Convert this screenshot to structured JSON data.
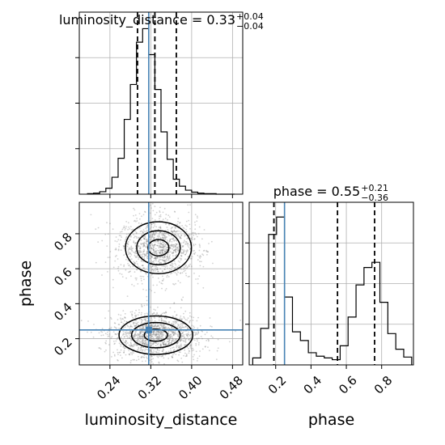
{
  "chart_data": {
    "type": "corner",
    "truth_color": "#4682b4",
    "panels": {
      "luminosity_distance_hist": {
        "type": "histogram",
        "title_prefix": "luminosity_distance = 0.33",
        "title_upper": "+0.04",
        "title_lower": "−0.04",
        "xlim": [
          0.18,
          0.5
        ],
        "bin_edges": [
          0.196,
          0.208,
          0.22,
          0.232,
          0.244,
          0.256,
          0.268,
          0.28,
          0.292,
          0.304,
          0.316,
          0.328,
          0.34,
          0.352,
          0.364,
          0.376,
          0.388,
          0.4,
          0.412,
          0.424,
          0.436,
          0.448,
          0.46,
          0.472,
          0.484
        ],
        "counts": [
          1,
          2,
          5,
          12,
          34,
          72,
          150,
          220,
          305,
          332,
          280,
          210,
          125,
          70,
          30,
          16,
          8,
          4,
          2,
          1,
          1,
          0,
          0,
          0
        ],
        "quantiles": [
          0.294,
          0.328,
          0.37
        ],
        "truth": 0.316
      },
      "phase_hist": {
        "type": "histogram",
        "title_prefix": "phase = 0.55",
        "title_upper": "+0.21",
        "title_lower": "−0.36",
        "xlim": [
          0.05,
          0.98
        ],
        "bin_edges": [
          0.07,
          0.115,
          0.16,
          0.205,
          0.25,
          0.295,
          0.34,
          0.385,
          0.43,
          0.475,
          0.52,
          0.565,
          0.61,
          0.655,
          0.7,
          0.745,
          0.79,
          0.835,
          0.88,
          0.925,
          0.97
        ],
        "counts": [
          8,
          42,
          150,
          170,
          78,
          38,
          28,
          14,
          10,
          8,
          6,
          22,
          55,
          92,
          112,
          118,
          72,
          36,
          18,
          9
        ],
        "quantiles": [
          0.19,
          0.55,
          0.76
        ],
        "truth": 0.25
      },
      "joint": {
        "type": "contour_density",
        "x_label": "luminosity_distance",
        "y_label": "phase",
        "xlim": [
          0.18,
          0.5
        ],
        "ylim": [
          0.05,
          0.98
        ],
        "modes": [
          {
            "x": 0.335,
            "y": 0.72,
            "sx": 0.034,
            "sy": 0.078,
            "weight": 0.46
          },
          {
            "x": 0.33,
            "y": 0.22,
            "sx": 0.038,
            "sy": 0.058,
            "weight": 0.54
          }
        ],
        "truth": [
          0.316,
          0.25
        ]
      }
    },
    "axes": {
      "luminosity_distance_ticks": [
        0.24,
        0.32,
        0.4,
        0.48
      ],
      "luminosity_distance_tick_labels": [
        "0.24",
        "0.32",
        "0.40",
        "0.48"
      ],
      "phase_y_ticks": [
        0.2,
        0.4,
        0.6,
        0.8
      ],
      "phase_y_tick_labels": [
        "0.2",
        "0.4",
        "0.6",
        "0.8"
      ],
      "phase_x_ticks": [
        0.2,
        0.4,
        0.6,
        0.8
      ],
      "phase_x_tick_labels": [
        "0.2",
        "0.4",
        "0.6",
        "0.8"
      ]
    },
    "grid": true,
    "colors": {
      "line": "#000000",
      "grid": "#b0b0b0",
      "truth": "#4682b4",
      "scatter": "#7f7f7f"
    }
  }
}
